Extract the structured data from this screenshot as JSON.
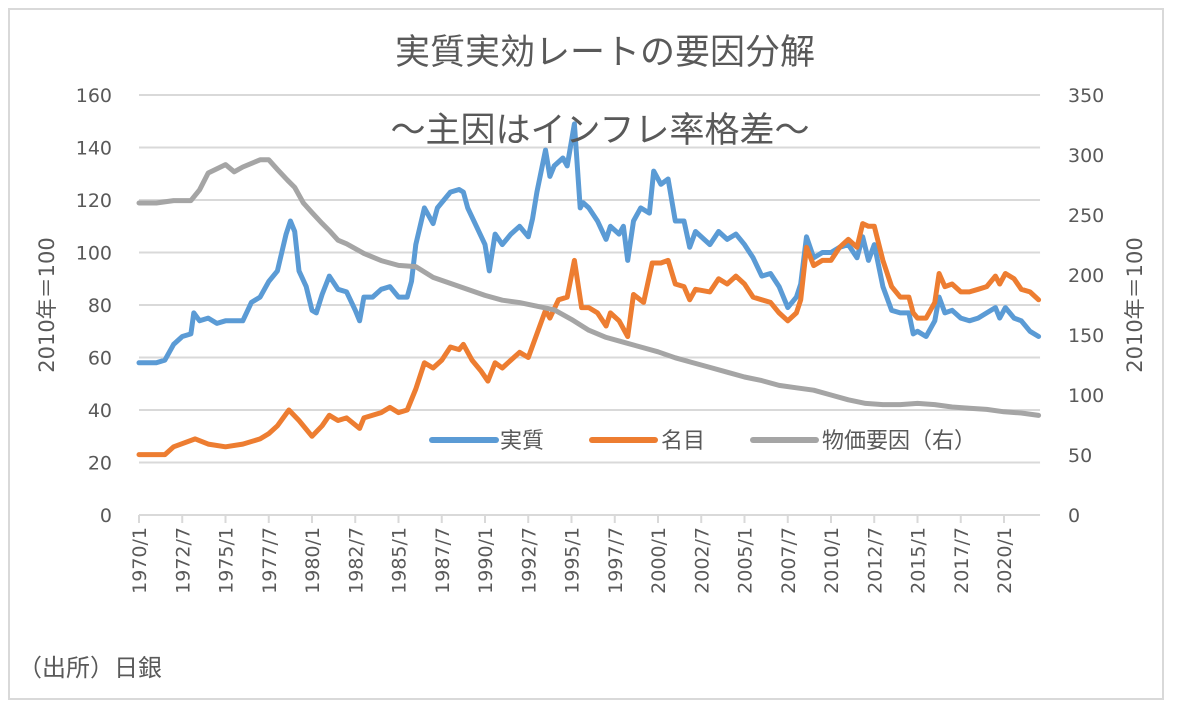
{
  "chart_data": {
    "type": "line",
    "title": "実質実効レートの要因分解",
    "subtitle": "～主因はインフレ率格差～",
    "ylabel_left": "2010年＝100",
    "ylabel_right": "2010年＝100",
    "ylim_left": [
      0,
      160
    ],
    "ylim_right": [
      0,
      350
    ],
    "yticks_left": [
      "0",
      "20",
      "40",
      "60",
      "80",
      "100",
      "120",
      "140",
      "160"
    ],
    "yticks_right": [
      "0",
      "50",
      "100",
      "150",
      "200",
      "250",
      "300",
      "350"
    ],
    "xticks": [
      "1970/1",
      "1972/7",
      "1975/1",
      "1977/7",
      "1980/1",
      "1982/7",
      "1985/1",
      "1987/7",
      "1990/1",
      "1992/7",
      "1995/1",
      "1997/7",
      "2000/1",
      "2002/7",
      "2005/1",
      "2007/7",
      "2010/1",
      "2012/7",
      "2015/1",
      "2017/7",
      "2020/1"
    ],
    "xrange": [
      "1970/1",
      "2022/2"
    ],
    "grid": true,
    "legend_placement": "bottom-right inside",
    "source": "（出所）日銀",
    "series": [
      {
        "name": "実質",
        "axis": "left",
        "color": "#5b9bd5",
        "points": [
          [
            "1970/1",
            58
          ],
          [
            "1971/1",
            58
          ],
          [
            "1971/7",
            59
          ],
          [
            "1972/1",
            65
          ],
          [
            "1972/7",
            68
          ],
          [
            "1973/1",
            69
          ],
          [
            "1973/3",
            77
          ],
          [
            "1973/7",
            74
          ],
          [
            "1974/1",
            75
          ],
          [
            "1974/7",
            73
          ],
          [
            "1975/1",
            74
          ],
          [
            "1975/7",
            74
          ],
          [
            "1976/1",
            74
          ],
          [
            "1976/7",
            81
          ],
          [
            "1977/1",
            83
          ],
          [
            "1977/7",
            89
          ],
          [
            "1978/1",
            93
          ],
          [
            "1978/7",
            107
          ],
          [
            "1978/10",
            112
          ],
          [
            "1979/1",
            108
          ],
          [
            "1979/4",
            93
          ],
          [
            "1979/9",
            87
          ],
          [
            "1980/1",
            78
          ],
          [
            "1980/4",
            77
          ],
          [
            "1980/8",
            84
          ],
          [
            "1981/1",
            91
          ],
          [
            "1981/7",
            86
          ],
          [
            "1982/1",
            85
          ],
          [
            "1982/7",
            78
          ],
          [
            "1982/10",
            74
          ],
          [
            "1983/1",
            83
          ],
          [
            "1983/7",
            83
          ],
          [
            "1984/1",
            86
          ],
          [
            "1984/7",
            87
          ],
          [
            "1985/1",
            83
          ],
          [
            "1985/7",
            83
          ],
          [
            "1985/10",
            89
          ],
          [
            "1986/1",
            103
          ],
          [
            "1986/7",
            117
          ],
          [
            "1987/1",
            111
          ],
          [
            "1987/4",
            117
          ],
          [
            "1988/1",
            123
          ],
          [
            "1988/7",
            124
          ],
          [
            "1988/10",
            123
          ],
          [
            "1989/1",
            117
          ],
          [
            "1989/7",
            110
          ],
          [
            "1990/1",
            103
          ],
          [
            "1990/4",
            93
          ],
          [
            "1990/8",
            107
          ],
          [
            "1991/1",
            103
          ],
          [
            "1991/7",
            107
          ],
          [
            "1992/1",
            110
          ],
          [
            "1992/7",
            106
          ],
          [
            "1992/10",
            113
          ],
          [
            "1993/1",
            123
          ],
          [
            "1993/7",
            139
          ],
          [
            "1993/10",
            129
          ],
          [
            "1994/1",
            133
          ],
          [
            "1994/7",
            136
          ],
          [
            "1994/10",
            133
          ],
          [
            "1995/3",
            149
          ],
          [
            "1995/7",
            117
          ],
          [
            "1995/9",
            119
          ],
          [
            "1996/1",
            117
          ],
          [
            "1996/7",
            112
          ],
          [
            "1997/1",
            105
          ],
          [
            "1997/4",
            110
          ],
          [
            "1997/10",
            107
          ],
          [
            "1998/1",
            110
          ],
          [
            "1998/4",
            97
          ],
          [
            "1998/8",
            112
          ],
          [
            "1999/1",
            117
          ],
          [
            "1999/7",
            115
          ],
          [
            "1999/10",
            131
          ],
          [
            "2000/3",
            126
          ],
          [
            "2000/8",
            128
          ],
          [
            "2001/1",
            112
          ],
          [
            "2001/7",
            112
          ],
          [
            "2001/11",
            102
          ],
          [
            "2002/3",
            108
          ],
          [
            "2003/1",
            103
          ],
          [
            "2003/7",
            108
          ],
          [
            "2004/1",
            105
          ],
          [
            "2004/7",
            107
          ],
          [
            "2005/1",
            103
          ],
          [
            "2005/7",
            98
          ],
          [
            "2006/1",
            91
          ],
          [
            "2006/7",
            92
          ],
          [
            "2007/1",
            87
          ],
          [
            "2007/7",
            79
          ],
          [
            "2008/1",
            83
          ],
          [
            "2008/4",
            88
          ],
          [
            "2008/8",
            106
          ],
          [
            "2009/1",
            98
          ],
          [
            "2009/7",
            100
          ],
          [
            "2010/1",
            100
          ],
          [
            "2010/7",
            102
          ],
          [
            "2011/1",
            103
          ],
          [
            "2011/7",
            98
          ],
          [
            "2011/11",
            106
          ],
          [
            "2012/3",
            97
          ],
          [
            "2012/7",
            103
          ],
          [
            "2013/1",
            87
          ],
          [
            "2013/7",
            78
          ],
          [
            "2014/1",
            77
          ],
          [
            "2014/7",
            77
          ],
          [
            "2014/10",
            69
          ],
          [
            "2015/1",
            70
          ],
          [
            "2015/7",
            68
          ],
          [
            "2016/1",
            74
          ],
          [
            "2016/4",
            83
          ],
          [
            "2016/8",
            77
          ],
          [
            "2017/1",
            78
          ],
          [
            "2017/7",
            75
          ],
          [
            "2018/1",
            74
          ],
          [
            "2018/7",
            75
          ],
          [
            "2019/1",
            77
          ],
          [
            "2019/7",
            79
          ],
          [
            "2019/10",
            75
          ],
          [
            "2020/2",
            79
          ],
          [
            "2020/8",
            75
          ],
          [
            "2021/1",
            74
          ],
          [
            "2021/7",
            70
          ],
          [
            "2022/1",
            68
          ]
        ]
      },
      {
        "name": "名目",
        "axis": "left",
        "color": "#ed7d31",
        "points": [
          [
            "1970/1",
            23
          ],
          [
            "1971/7",
            23
          ],
          [
            "1972/1",
            26
          ],
          [
            "1973/4",
            29
          ],
          [
            "1974/1",
            27
          ],
          [
            "1975/1",
            26
          ],
          [
            "1976/1",
            27
          ],
          [
            "1977/1",
            29
          ],
          [
            "1977/7",
            31
          ],
          [
            "1978/1",
            34
          ],
          [
            "1978/9",
            40
          ],
          [
            "1979/4",
            36
          ],
          [
            "1980/1",
            30
          ],
          [
            "1980/8",
            34
          ],
          [
            "1981/1",
            38
          ],
          [
            "1981/7",
            36
          ],
          [
            "1982/1",
            37
          ],
          [
            "1982/10",
            33
          ],
          [
            "1983/1",
            37
          ],
          [
            "1984/1",
            39
          ],
          [
            "1984/7",
            41
          ],
          [
            "1985/1",
            39
          ],
          [
            "1985/7",
            40
          ],
          [
            "1986/1",
            48
          ],
          [
            "1986/7",
            58
          ],
          [
            "1987/1",
            56
          ],
          [
            "1987/7",
            59
          ],
          [
            "1988/1",
            64
          ],
          [
            "1988/7",
            63
          ],
          [
            "1988/10",
            65
          ],
          [
            "1989/4",
            59
          ],
          [
            "1989/10",
            55
          ],
          [
            "1990/3",
            51
          ],
          [
            "1990/8",
            58
          ],
          [
            "1991/1",
            56
          ],
          [
            "1991/7",
            59
          ],
          [
            "1992/1",
            62
          ],
          [
            "1992/7",
            60
          ],
          [
            "1993/1",
            69
          ],
          [
            "1993/7",
            78
          ],
          [
            "1993/10",
            75
          ],
          [
            "1994/4",
            82
          ],
          [
            "1994/10",
            83
          ],
          [
            "1995/3",
            97
          ],
          [
            "1995/8",
            79
          ],
          [
            "1996/1",
            79
          ],
          [
            "1996/7",
            77
          ],
          [
            "1997/1",
            72
          ],
          [
            "1997/4",
            77
          ],
          [
            "1997/10",
            74
          ],
          [
            "1998/4",
            68
          ],
          [
            "1998/8",
            84
          ],
          [
            "1999/3",
            81
          ],
          [
            "1999/9",
            96
          ],
          [
            "2000/3",
            96
          ],
          [
            "2000/8",
            97
          ],
          [
            "2001/1",
            88
          ],
          [
            "2001/7",
            87
          ],
          [
            "2001/11",
            82
          ],
          [
            "2002/3",
            86
          ],
          [
            "2003/1",
            85
          ],
          [
            "2003/7",
            90
          ],
          [
            "2004/1",
            88
          ],
          [
            "2004/7",
            91
          ],
          [
            "2005/1",
            88
          ],
          [
            "2005/7",
            83
          ],
          [
            "2006/1",
            82
          ],
          [
            "2006/7",
            81
          ],
          [
            "2007/1",
            77
          ],
          [
            "2007/7",
            74
          ],
          [
            "2008/1",
            77
          ],
          [
            "2008/4",
            82
          ],
          [
            "2008/8",
            102
          ],
          [
            "2009/1",
            95
          ],
          [
            "2009/7",
            97
          ],
          [
            "2010/1",
            97
          ],
          [
            "2010/7",
            102
          ],
          [
            "2011/1",
            105
          ],
          [
            "2011/7",
            102
          ],
          [
            "2011/11",
            111
          ],
          [
            "2012/3",
            110
          ],
          [
            "2012/7",
            110
          ],
          [
            "2013/1",
            97
          ],
          [
            "2013/7",
            87
          ],
          [
            "2014/1",
            83
          ],
          [
            "2014/7",
            83
          ],
          [
            "2014/10",
            77
          ],
          [
            "2015/1",
            75
          ],
          [
            "2015/7",
            75
          ],
          [
            "2016/1",
            81
          ],
          [
            "2016/4",
            92
          ],
          [
            "2016/8",
            87
          ],
          [
            "2017/1",
            88
          ],
          [
            "2017/7",
            85
          ],
          [
            "2018/1",
            85
          ],
          [
            "2018/7",
            86
          ],
          [
            "2019/1",
            87
          ],
          [
            "2019/7",
            91
          ],
          [
            "2019/10",
            88
          ],
          [
            "2020/2",
            92
          ],
          [
            "2020/8",
            90
          ],
          [
            "2021/1",
            86
          ],
          [
            "2021/7",
            85
          ],
          [
            "2022/1",
            82
          ]
        ]
      },
      {
        "name": "物価要因（右）",
        "axis": "right",
        "color": "#a5a5a5",
        "points": [
          [
            "1970/1",
            260
          ],
          [
            "1971/1",
            260
          ],
          [
            "1972/1",
            262
          ],
          [
            "1973/1",
            262
          ],
          [
            "1973/7",
            271
          ],
          [
            "1974/1",
            285
          ],
          [
            "1975/1",
            292
          ],
          [
            "1975/7",
            286
          ],
          [
            "1976/1",
            290
          ],
          [
            "1977/1",
            296
          ],
          [
            "1977/7",
            296
          ],
          [
            "1978/1",
            288
          ],
          [
            "1978/8",
            279
          ],
          [
            "1979/1",
            273
          ],
          [
            "1979/7",
            260
          ],
          [
            "1980/1",
            252
          ],
          [
            "1980/8",
            243
          ],
          [
            "1981/1",
            237
          ],
          [
            "1981/7",
            229
          ],
          [
            "1982/1",
            226
          ],
          [
            "1983/1",
            218
          ],
          [
            "1984/1",
            212
          ],
          [
            "1985/1",
            208
          ],
          [
            "1986/1",
            207
          ],
          [
            "1987/1",
            198
          ],
          [
            "1988/1",
            193
          ],
          [
            "1989/1",
            188
          ],
          [
            "1990/1",
            183
          ],
          [
            "1991/1",
            179
          ],
          [
            "1992/1",
            177
          ],
          [
            "1993/1",
            174
          ],
          [
            "1994/1",
            171
          ],
          [
            "1995/1",
            163
          ],
          [
            "1995/9",
            157
          ],
          [
            "1996/1",
            154
          ],
          [
            "1997/1",
            148
          ],
          [
            "1998/1",
            144
          ],
          [
            "1999/1",
            140
          ],
          [
            "2000/1",
            136
          ],
          [
            "2001/1",
            131
          ],
          [
            "2002/1",
            127
          ],
          [
            "2003/1",
            123
          ],
          [
            "2004/1",
            119
          ],
          [
            "2005/1",
            115
          ],
          [
            "2006/1",
            112
          ],
          [
            "2007/1",
            108
          ],
          [
            "2008/1",
            106
          ],
          [
            "2009/1",
            104
          ],
          [
            "2010/1",
            100
          ],
          [
            "2011/1",
            96
          ],
          [
            "2012/1",
            93
          ],
          [
            "2013/1",
            92
          ],
          [
            "2014/1",
            92
          ],
          [
            "2015/1",
            93
          ],
          [
            "2016/1",
            92
          ],
          [
            "2017/1",
            90
          ],
          [
            "2018/1",
            89
          ],
          [
            "2019/1",
            88
          ],
          [
            "2020/1",
            86
          ],
          [
            "2021/1",
            85
          ],
          [
            "2022/1",
            83
          ]
        ]
      }
    ]
  }
}
